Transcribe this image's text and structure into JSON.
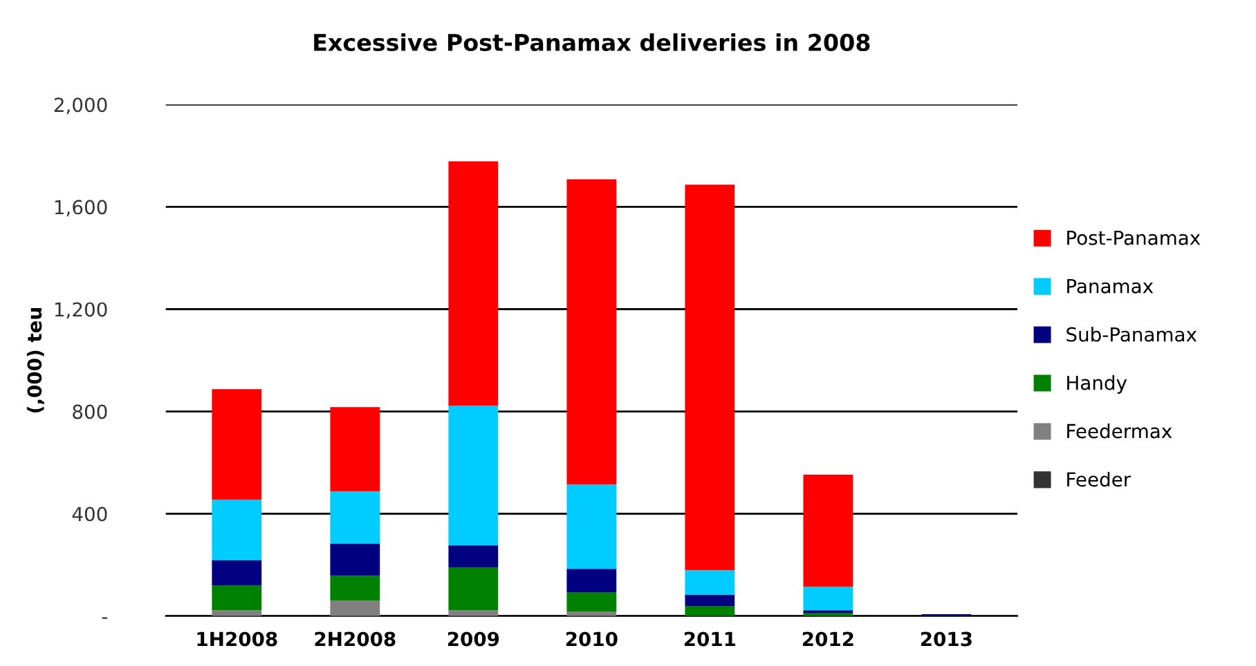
{
  "chart_data": {
    "type": "bar",
    "title": "Excessive Post-Panamax deliveries in 2008",
    "ylabel": "(,000) teu",
    "categories": [
      "1H2008",
      "2H2008",
      "2009",
      "2010",
      "2011",
      "2012",
      "2013"
    ],
    "stacked": true,
    "series": [
      {
        "name": "Feeder",
        "color": "#333333",
        "values": [
          0,
          0,
          0,
          0,
          0,
          0,
          0
        ]
      },
      {
        "name": "Feedermax",
        "color": "#808080",
        "values": [
          23,
          61,
          23,
          18,
          0,
          0,
          0
        ]
      },
      {
        "name": "Handy",
        "color": "#008000",
        "values": [
          98,
          97,
          168,
          76,
          40,
          13,
          0
        ]
      },
      {
        "name": "Sub-Panamax",
        "color": "#000080",
        "values": [
          97,
          125,
          86,
          91,
          43,
          10,
          7
        ]
      },
      {
        "name": "Panamax",
        "color": "#00ccff",
        "values": [
          237,
          205,
          546,
          330,
          97,
          92,
          0
        ]
      },
      {
        "name": "Post-Panamax",
        "color": "#ff0000",
        "values": [
          432,
          329,
          955,
          1193,
          1507,
          438,
          0
        ]
      }
    ],
    "ylim": [
      0,
      2000
    ],
    "yticks": [
      {
        "value": 0,
        "label": "-"
      },
      400,
      800,
      {
        "value": 1200,
        "label": "1,200"
      },
      {
        "value": 1600,
        "label": "1,600"
      },
      {
        "value": 2000,
        "label": "2,000"
      }
    ],
    "grid": "y",
    "legend": "right"
  }
}
